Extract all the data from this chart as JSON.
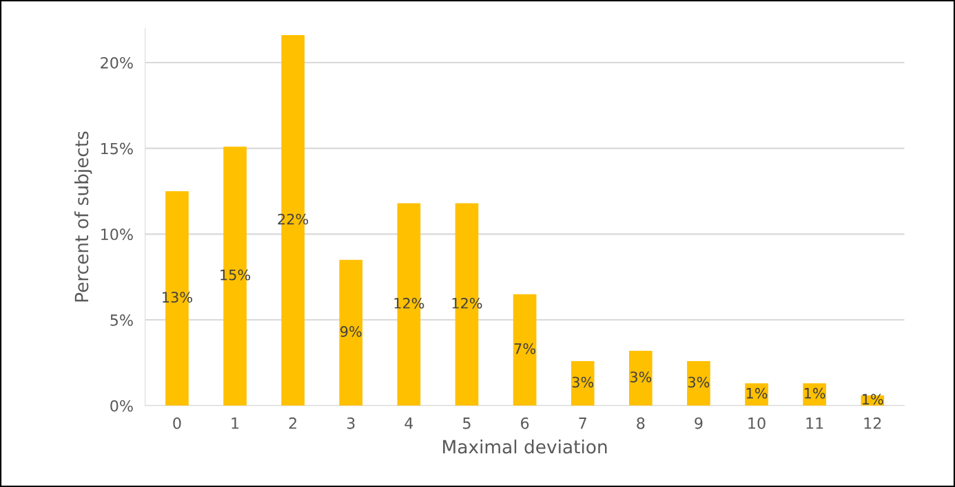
{
  "chart_data": {
    "type": "bar",
    "xlabel": "Maximal deviation",
    "ylabel": "Percent of subjects",
    "categories": [
      "0",
      "1",
      "2",
      "3",
      "4",
      "5",
      "6",
      "7",
      "8",
      "9",
      "10",
      "11",
      "12"
    ],
    "values": [
      12.5,
      15.1,
      21.6,
      8.5,
      11.8,
      11.8,
      6.5,
      2.6,
      3.2,
      2.6,
      1.3,
      1.3,
      0.6
    ],
    "value_labels": [
      "13%",
      "15%",
      "22%",
      "9%",
      "12%",
      "12%",
      "7%",
      "3%",
      "3%",
      "3%",
      "1%",
      "1%",
      "1%"
    ],
    "color": "#ffc000",
    "ylim": [
      0,
      22
    ],
    "yticks": [
      {
        "value": 0,
        "label": "0%"
      },
      {
        "value": 5,
        "label": "5%"
      },
      {
        "value": 10,
        "label": "10%"
      },
      {
        "value": 15,
        "label": "15%"
      },
      {
        "value": 20,
        "label": "20%"
      }
    ],
    "grid": "y"
  }
}
